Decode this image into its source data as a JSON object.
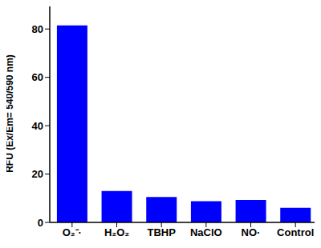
{
  "chart_data": {
    "type": "bar",
    "y_label": "RFU (Ex/Em= 540/590 nm)",
    "categories": [
      "O₂⁻·",
      "H₂O₂",
      "TBHP",
      "NaClO",
      "NO·",
      "Control"
    ],
    "values": [
      81.5,
      13,
      10.5,
      8.8,
      9.3,
      6
    ],
    "color": "#0000ff",
    "ylim": [
      0,
      90
    ],
    "yticks": [
      0,
      20,
      40,
      60,
      80
    ],
    "grid": false
  }
}
